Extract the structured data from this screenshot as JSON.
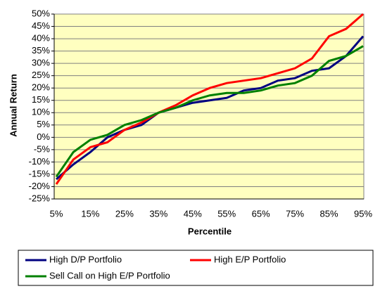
{
  "chart_data": {
    "type": "line",
    "x_label": "Percentile",
    "y_label": "Annual Return",
    "categories": [
      "5%",
      null,
      "15%",
      null,
      "25%",
      null,
      "35%",
      null,
      "45%",
      null,
      "55%",
      null,
      "65%",
      null,
      "75%",
      null,
      "85%",
      null,
      "95%"
    ],
    "series": [
      {
        "name": "High D/P Portfolio",
        "color": "#000080",
        "values": [
          -17,
          -11,
          -6,
          0,
          3,
          5,
          10,
          12,
          14,
          15,
          16,
          19,
          20,
          23,
          24,
          27,
          28,
          33,
          41
        ]
      },
      {
        "name": "High E/P Portfolio",
        "color": "#ff0000",
        "values": [
          -19,
          -9,
          -4,
          -2,
          3,
          6,
          10,
          13,
          17,
          20,
          22,
          23,
          24,
          26,
          28,
          32,
          41,
          44,
          50
        ]
      },
      {
        "name": "Sell Call on High E/P Portfolio",
        "color": "#008000",
        "values": [
          -16,
          -6,
          -1,
          1,
          5,
          7,
          10,
          12,
          15,
          17,
          18,
          18,
          19,
          21,
          22,
          25,
          31,
          33,
          37
        ]
      }
    ],
    "ylim": [
      -25,
      50
    ],
    "yticks": [
      {
        "value": -25,
        "label": "-25%"
      },
      {
        "value": -20,
        "label": "-20%"
      },
      {
        "value": -15,
        "label": "-15%"
      },
      {
        "value": -10,
        "label": "-10%"
      },
      {
        "value": -5,
        "label": "-5%"
      },
      {
        "value": 0,
        "label": "0%"
      },
      {
        "value": 5,
        "label": "5%"
      },
      {
        "value": 10,
        "label": "10%"
      },
      {
        "value": 15,
        "label": "15%"
      },
      {
        "value": 20,
        "label": "20%"
      },
      {
        "value": 25,
        "label": "25%"
      },
      {
        "value": 30,
        "label": "30%"
      },
      {
        "value": 35,
        "label": "35%"
      },
      {
        "value": 40,
        "label": "40%"
      },
      {
        "value": 45,
        "label": "45%"
      },
      {
        "value": 50,
        "label": "50%"
      }
    ],
    "grid": true,
    "legend": "bottom",
    "plot_background": "#ffffc0"
  }
}
